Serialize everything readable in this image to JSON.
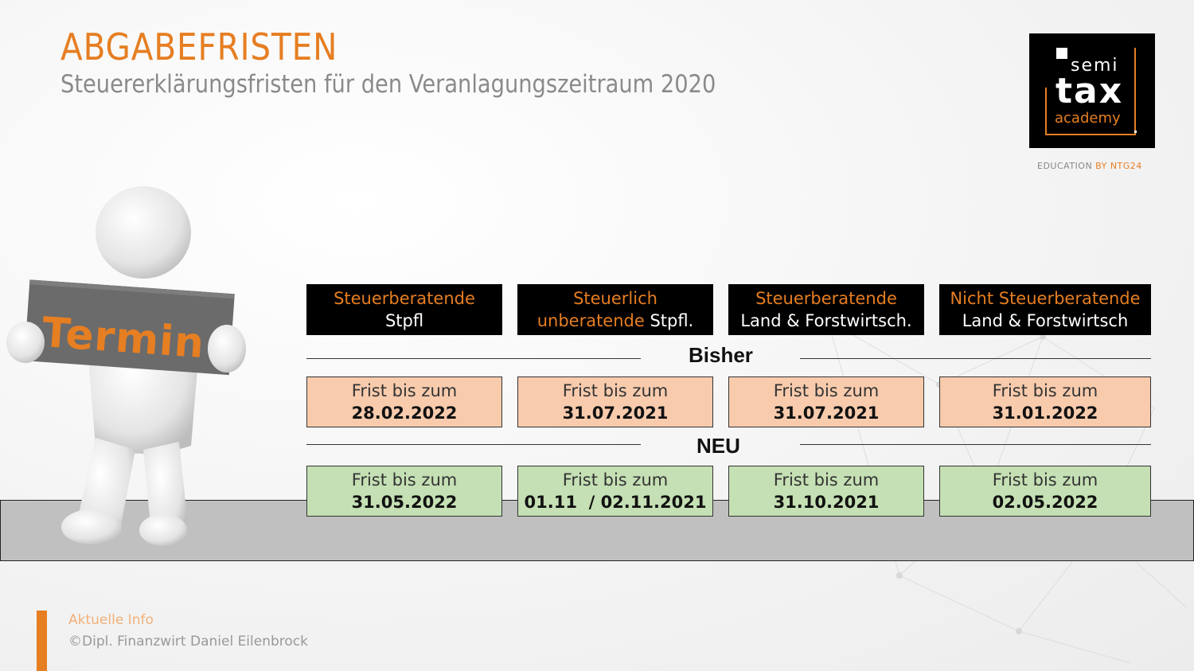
{
  "header": {
    "title": "ABGABEFRISTEN",
    "subtitle": "Steuererklärungsfristen für den Veranlagungszeitraum 2020"
  },
  "logo": {
    "line1": "semi",
    "line2": "tax",
    "line3": "academy",
    "tagline_prefix": "EDUCATION ",
    "tagline_accent": "BY NTG24"
  },
  "figure": {
    "sign_text": "Termin"
  },
  "columns": [
    {
      "head_accent": "Steuerberatende",
      "head_rest": "Stpfl",
      "bisher_label": "Frist bis zum",
      "bisher_date": "28.02.2022",
      "neu_label": "Frist bis zum",
      "neu_date": "31.05.2022"
    },
    {
      "head_accent": "Steuerlich",
      "head_accent2": "unberatende",
      "head_rest": " Stpfl.",
      "bisher_label": "Frist bis zum",
      "bisher_date": "31.07.2021",
      "neu_label": "Frist bis zum",
      "neu_date": "01.11  / 02.11.2021"
    },
    {
      "head_accent": "Steuerberatende",
      "head_rest": "Land & Forstwirtsch.",
      "bisher_label": "Frist bis zum",
      "bisher_date": "31.07.2021",
      "neu_label": "Frist bis zum",
      "neu_date": "31.10.2021"
    },
    {
      "head_accent": "Nicht Steuerberatende",
      "head_rest": "Land & Forstwirtsch",
      "bisher_label": "Frist bis zum",
      "bisher_date": "31.01.2022",
      "neu_label": "Frist bis zum",
      "neu_date": "02.05.2022"
    }
  ],
  "sections": {
    "bisher": "Bisher",
    "neu": "NEU"
  },
  "footer": {
    "info": "Aktuelle Info",
    "copyright": "©Dipl. Finanzwirt Daniel Eilenbrock"
  },
  "colors": {
    "accent": "#e67e22",
    "peach": "#f8cbad",
    "green": "#c5e0b4",
    "ground": "#c0c0c0"
  }
}
